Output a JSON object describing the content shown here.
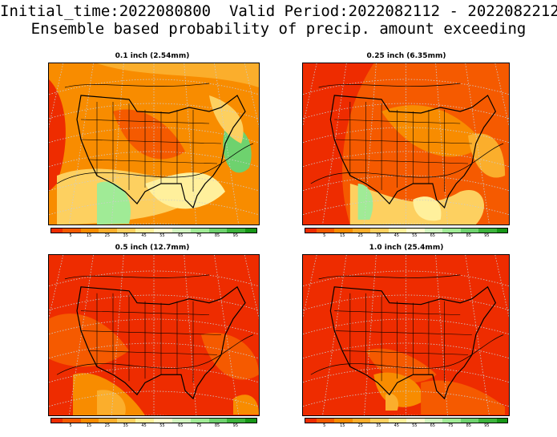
{
  "header": {
    "line1": "Initial_time:2022080800  Valid Period:2022082112 - 2022082212",
    "line2": "Ensemble based probability of precip. amount exceeding"
  },
  "colorbar": {
    "colors": [
      "#ee2c00",
      "#f55a00",
      "#f88c00",
      "#fbae2c",
      "#fdd060",
      "#fff09c",
      "#ffffd0",
      "#d2f5c0",
      "#a0eb96",
      "#6ed26e",
      "#3cb43c",
      "#169616"
    ],
    "labels": [
      "5",
      "15",
      "25",
      "35",
      "45",
      "55",
      "65",
      "75",
      "85",
      "95"
    ]
  },
  "panels": [
    {
      "title": "0.1 inch (2.54mm)",
      "theme": "low"
    },
    {
      "title": "0.25 inch (6.35mm)",
      "theme": "mid"
    },
    {
      "title": "0.5 inch (12.7mm)",
      "theme": "high"
    },
    {
      "title": "1.0 inch (25.4mm)",
      "theme": "higher"
    }
  ]
}
